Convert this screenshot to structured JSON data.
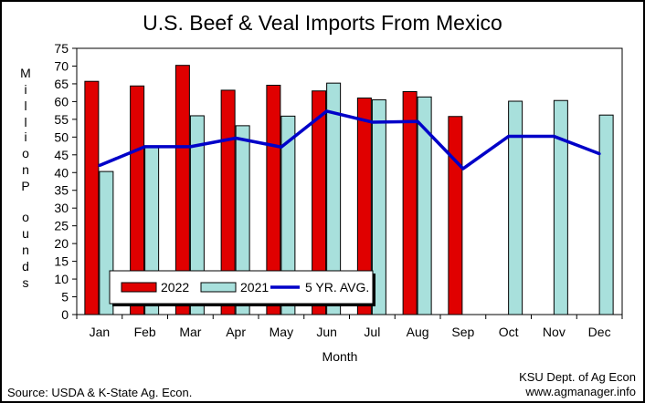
{
  "chart_data": {
    "type": "bar",
    "title": "U.S. Beef & Veal Imports From Mexico",
    "xlabel": "Month",
    "ylabel": "Million Pounds",
    "categories": [
      "Jan",
      "Feb",
      "Mar",
      "Apr",
      "May",
      "Jun",
      "Jul",
      "Aug",
      "Sep",
      "Oct",
      "Nov",
      "Dec"
    ],
    "ylim": [
      0,
      75
    ],
    "yticks": [
      0,
      5,
      10,
      15,
      20,
      25,
      30,
      35,
      40,
      45,
      50,
      55,
      60,
      65,
      70,
      75
    ],
    "grid": false,
    "legend_position": "bottom-left",
    "series": [
      {
        "name": "2022",
        "kind": "bar",
        "color": "#e00000",
        "values": [
          65.7,
          64.4,
          70.2,
          63.2,
          64.6,
          63.0,
          61.0,
          62.8,
          55.8,
          null,
          null,
          null
        ]
      },
      {
        "name": "2021",
        "kind": "bar",
        "color": "#a8e0dc",
        "values": [
          40.3,
          47.3,
          56.0,
          53.2,
          55.9,
          65.2,
          60.5,
          61.3,
          null,
          60.1,
          60.3,
          56.2
        ]
      },
      {
        "name": "5 YR. AVG.",
        "kind": "line",
        "color": "#0000c8",
        "values": [
          42.0,
          47.3,
          47.3,
          49.7,
          47.2,
          57.3,
          54.2,
          54.4,
          41.1,
          50.2,
          50.2,
          45.3
        ]
      }
    ]
  },
  "footer": {
    "source": "Source:  USDA & K-State Ag. Econ.",
    "credit_line1": "KSU Dept. of Ag Econ",
    "credit_line2": "www.agmanager.info"
  }
}
